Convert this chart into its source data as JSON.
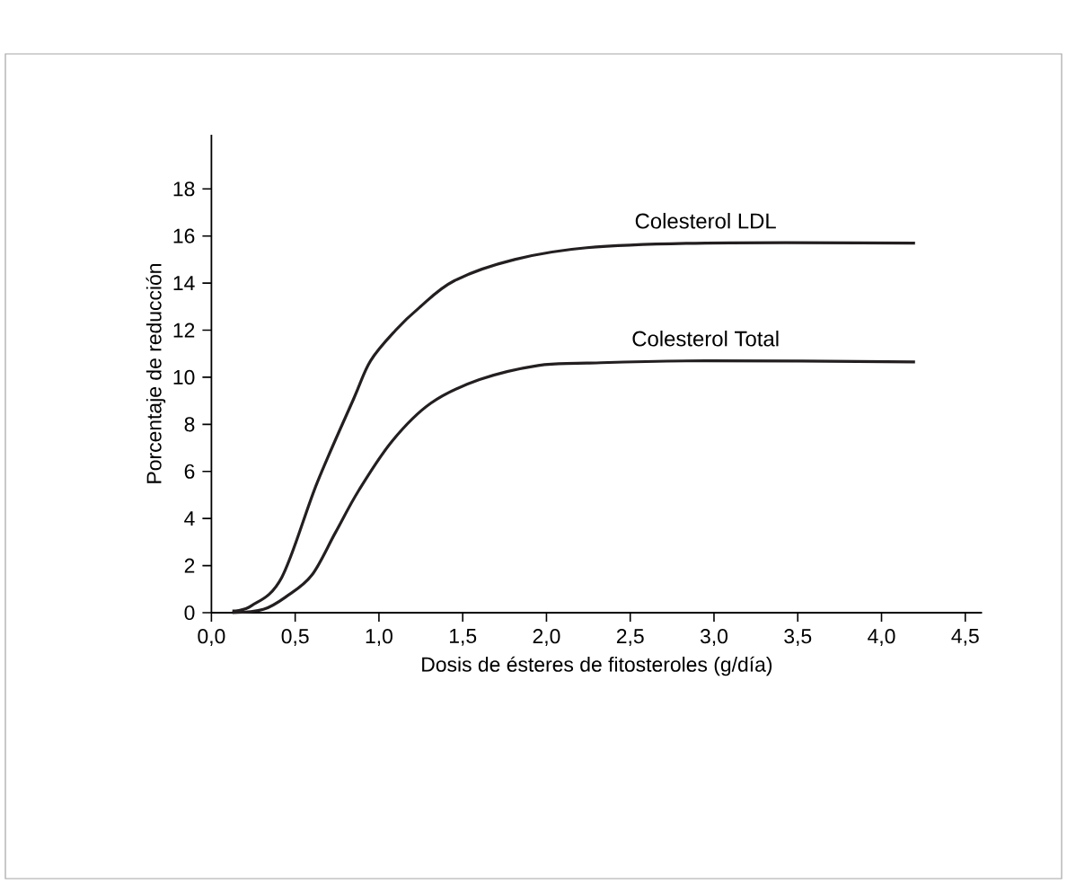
{
  "chart_data": {
    "type": "line",
    "xlabel": "Dosis de ésteres de fitosteroles (g/día)",
    "ylabel": "Porcentaje de reducción",
    "xlim": [
      0,
      4.6
    ],
    "ylim": [
      0,
      20.3
    ],
    "xticks": [
      {
        "value": 0,
        "label": "0,0"
      },
      {
        "value": 0.5,
        "label": "0,5"
      },
      {
        "value": 1,
        "label": "1,0"
      },
      {
        "value": 1.5,
        "label": "1,5"
      },
      {
        "value": 2,
        "label": "2,0"
      },
      {
        "value": 2.5,
        "label": "2,5"
      },
      {
        "value": 3,
        "label": "3,0"
      },
      {
        "value": 3.5,
        "label": "3,5"
      },
      {
        "value": 4,
        "label": "4,0"
      },
      {
        "value": 4.5,
        "label": "4,5"
      }
    ],
    "yticks": [
      0,
      2,
      4,
      6,
      8,
      10,
      12,
      14,
      16,
      18
    ],
    "marker": "none",
    "line_style": "solid",
    "series": [
      {
        "name": "Colesterol LDL",
        "color": "#231f20",
        "x": [
          0.125,
          0.24,
          0.42,
          0.63,
          0.85,
          0.95,
          1.1,
          1.24,
          1.45,
          1.81,
          2.24,
          2.95,
          4.2
        ],
        "values": [
          0.07,
          0.3,
          1.5,
          5.5,
          9.1,
          10.7,
          12.0,
          12.95,
          14.1,
          15.0,
          15.5,
          15.7,
          15.7
        ]
      },
      {
        "name": "Colesterol Total",
        "color": "#231f20",
        "x": [
          0.125,
          0.31,
          0.45,
          0.6,
          0.74,
          0.88,
          1.08,
          1.31,
          1.6,
          1.95,
          2.24,
          2.95,
          4.2
        ],
        "values": [
          0,
          0.14,
          0.7,
          1.6,
          3.4,
          5.2,
          7.3,
          8.9,
          9.9,
          10.5,
          10.6,
          10.7,
          10.65
        ]
      }
    ]
  }
}
